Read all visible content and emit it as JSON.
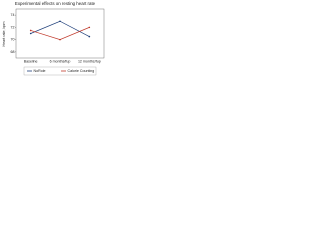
{
  "chart_data": {
    "type": "line",
    "title": "Experimental effects on resting heart rate",
    "y_label": "Heart rate, bpm",
    "categories": [
      "Baseline",
      "6 months/fup",
      "12 months/fup"
    ],
    "series": [
      {
        "name": "NoRole",
        "color": "#1f3f7a",
        "values": [
          71,
          73,
          70.5
        ]
      },
      {
        "name": "Calorie Counting",
        "color": "#c0392b",
        "values": [
          71.5,
          70,
          72
        ]
      }
    ],
    "ylim": [
      67,
      75
    ],
    "yticks": [
      68,
      70,
      72,
      74
    ]
  }
}
